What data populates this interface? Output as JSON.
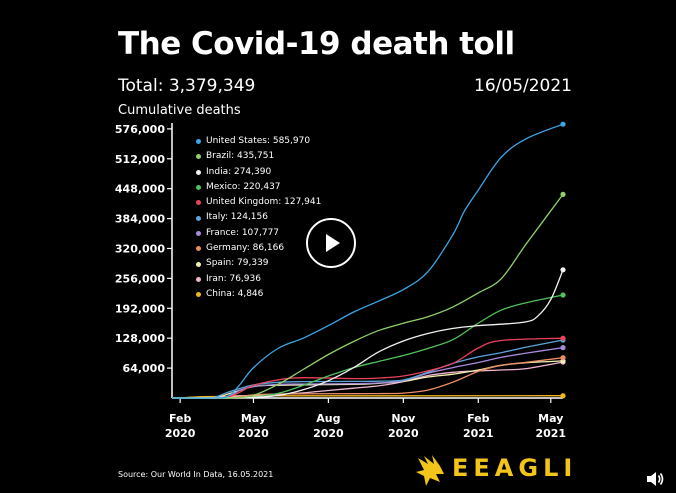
{
  "header": {
    "title": "The Covid-19 death toll",
    "total": "Total: 3,379,349",
    "date": "16/05/2021",
    "subtitle": "Cumulative deaths"
  },
  "footer": {
    "source": "Source: Our World In Data, 16.05.2021",
    "brand": "EEAGLI"
  },
  "controls": {
    "play_icon": "play-icon",
    "volume_icon": "volume-icon"
  },
  "chart_data": {
    "type": "line",
    "title": "",
    "ylabel": "Cumulative deaths",
    "xlabel": "",
    "ylim": [
      0,
      580000
    ],
    "xlim": [
      "2020-01-22",
      "2021-05-16"
    ],
    "yticks": [
      64000,
      128000,
      192000,
      256000,
      320000,
      384000,
      448000,
      512000,
      576000
    ],
    "ytick_labels": [
      "64,000",
      "128,000",
      "192,000",
      "256,000",
      "320,000",
      "384,000",
      "448,000",
      "512,000",
      "576,000"
    ],
    "xticks": [
      {
        "date": "2020-02-01",
        "label1": "Feb",
        "label2": "2020"
      },
      {
        "date": "2020-05-01",
        "label1": "May",
        "label2": "2020"
      },
      {
        "date": "2020-08-01",
        "label1": "Aug",
        "label2": "2020"
      },
      {
        "date": "2020-11-01",
        "label1": "Nov",
        "label2": "2020"
      },
      {
        "date": "2021-02-01",
        "label1": "Feb",
        "label2": "2021"
      },
      {
        "date": "2021-05-01",
        "label1": "May",
        "label2": "2021"
      }
    ],
    "legend_position": "top-left",
    "series": [
      {
        "name": "United States",
        "label": "United States: 585,970",
        "color": "#3ba7e6",
        "x": [
          "2020-01-22",
          "2020-03-15",
          "2020-04-01",
          "2020-04-15",
          "2020-05-01",
          "2020-06-01",
          "2020-07-01",
          "2020-08-01",
          "2020-09-01",
          "2020-10-01",
          "2020-11-01",
          "2020-12-01",
          "2021-01-01",
          "2021-01-15",
          "2021-02-01",
          "2021-03-01",
          "2021-04-01",
          "2021-05-16"
        ],
        "values": [
          0,
          100,
          5000,
          30000,
          65000,
          107000,
          128000,
          155000,
          184000,
          207000,
          232000,
          270000,
          350000,
          400000,
          445000,
          515000,
          555000,
          585970
        ]
      },
      {
        "name": "Brazil",
        "label": "Brazil: 435,751",
        "color": "#8ed06a",
        "x": [
          "2020-01-22",
          "2020-04-01",
          "2020-05-01",
          "2020-06-01",
          "2020-07-01",
          "2020-08-01",
          "2020-09-01",
          "2020-10-01",
          "2020-11-01",
          "2020-12-01",
          "2021-01-01",
          "2021-02-01",
          "2021-03-01",
          "2021-04-01",
          "2021-05-16"
        ],
        "values": [
          0,
          100,
          6000,
          30000,
          61000,
          93000,
          121000,
          144000,
          160000,
          174000,
          195000,
          225000,
          255000,
          330000,
          435751
        ]
      },
      {
        "name": "India",
        "label": "India: 274,390",
        "color": "#f2f2f2",
        "x": [
          "2020-01-22",
          "2020-04-15",
          "2020-05-01",
          "2020-06-01",
          "2020-07-01",
          "2020-08-01",
          "2020-09-01",
          "2020-10-01",
          "2020-11-01",
          "2020-12-01",
          "2021-01-01",
          "2021-02-01",
          "2021-03-01",
          "2021-04-01",
          "2021-04-15",
          "2021-05-01",
          "2021-05-16"
        ],
        "values": [
          0,
          400,
          1200,
          5500,
          17500,
          37000,
          65000,
          98000,
          122000,
          138000,
          149000,
          155000,
          158000,
          163000,
          175000,
          211000,
          274390
        ]
      },
      {
        "name": "Mexico",
        "label": "Mexico: 220,437",
        "color": "#4fc25c",
        "x": [
          "2020-01-22",
          "2020-04-15",
          "2020-05-01",
          "2020-06-01",
          "2020-07-01",
          "2020-08-01",
          "2020-09-01",
          "2020-10-01",
          "2020-11-01",
          "2020-12-01",
          "2021-01-01",
          "2021-02-01",
          "2021-03-01",
          "2021-04-01",
          "2021-05-16"
        ],
        "values": [
          0,
          500,
          2000,
          10000,
          27000,
          47000,
          65000,
          78000,
          91000,
          106000,
          125000,
          160000,
          188000,
          204000,
          220437
        ]
      },
      {
        "name": "United Kingdom",
        "label": "United Kingdom: 127,941",
        "color": "#e8435b",
        "x": [
          "2020-01-22",
          "2020-03-15",
          "2020-04-01",
          "2020-04-15",
          "2020-05-01",
          "2020-06-01",
          "2020-07-01",
          "2020-09-01",
          "2020-10-01",
          "2020-11-01",
          "2020-12-01",
          "2021-01-01",
          "2021-02-01",
          "2021-03-01",
          "2021-05-16"
        ],
        "values": [
          0,
          50,
          2500,
          13000,
          27000,
          39000,
          43500,
          41500,
          42500,
          47000,
          58000,
          74000,
          107000,
          123000,
          127941
        ]
      },
      {
        "name": "Italy",
        "label": "Italy: 124,156",
        "color": "#5aa5d9",
        "x": [
          "2020-01-22",
          "2020-03-01",
          "2020-03-15",
          "2020-04-01",
          "2020-05-01",
          "2020-06-01",
          "2020-07-01",
          "2020-09-01",
          "2020-10-01",
          "2020-11-01",
          "2020-12-01",
          "2021-01-01",
          "2021-02-01",
          "2021-03-01",
          "2021-04-01",
          "2021-05-16"
        ],
        "values": [
          0,
          30,
          1800,
          13000,
          28000,
          33500,
          35000,
          35500,
          36000,
          38500,
          55000,
          74000,
          88000,
          97000,
          109000,
          124156
        ]
      },
      {
        "name": "France",
        "label": "France: 107,777",
        "color": "#a78bdc",
        "x": [
          "2020-01-22",
          "2020-03-15",
          "2020-04-01",
          "2020-04-15",
          "2020-05-01",
          "2020-06-01",
          "2020-07-01",
          "2020-09-01",
          "2020-10-01",
          "2020-11-01",
          "2020-12-01",
          "2021-01-01",
          "2021-02-01",
          "2021-03-01",
          "2021-04-01",
          "2021-05-16"
        ],
        "values": [
          0,
          100,
          4000,
          17000,
          24500,
          29000,
          30000,
          30700,
          32000,
          37000,
          53000,
          65000,
          76000,
          87000,
          96000,
          107777
        ]
      },
      {
        "name": "Germany",
        "label": "Germany: 86,166",
        "color": "#e98d63",
        "x": [
          "2020-01-22",
          "2020-04-01",
          "2020-05-01",
          "2020-06-01",
          "2020-09-01",
          "2020-10-01",
          "2020-11-01",
          "2020-12-01",
          "2021-01-01",
          "2021-02-01",
          "2021-03-01",
          "2021-04-01",
          "2021-05-16"
        ],
        "values": [
          0,
          900,
          6700,
          8500,
          9300,
          9500,
          10500,
          17000,
          34000,
          57000,
          70000,
          76500,
          86166
        ]
      },
      {
        "name": "Spain",
        "label": "Spain: 79,339",
        "color": "#f4f0b0",
        "x": [
          "2020-01-22",
          "2020-03-01",
          "2020-03-15",
          "2020-04-01",
          "2020-05-01",
          "2020-06-01",
          "2020-09-01",
          "2020-10-01",
          "2020-11-01",
          "2020-12-01",
          "2021-01-01",
          "2021-02-01",
          "2021-03-01",
          "2021-04-01",
          "2021-05-16"
        ],
        "values": [
          0,
          0,
          300,
          9000,
          24500,
          27500,
          29200,
          31500,
          35500,
          45000,
          51000,
          60000,
          70000,
          75500,
          79339
        ]
      },
      {
        "name": "Iran",
        "label": "Iran: 76,936",
        "color": "#efb6d0",
        "x": [
          "2020-01-22",
          "2020-02-20",
          "2020-03-15",
          "2020-04-01",
          "2020-05-01",
          "2020-06-01",
          "2020-07-01",
          "2020-08-01",
          "2020-09-01",
          "2020-10-01",
          "2020-11-01",
          "2020-12-01",
          "2021-01-01",
          "2021-02-01",
          "2021-03-01",
          "2021-04-01",
          "2021-05-16"
        ],
        "values": [
          0,
          2,
          700,
          3000,
          6000,
          7900,
          11000,
          16000,
          21000,
          26000,
          35000,
          48000,
          55000,
          58000,
          60000,
          63000,
          76936
        ]
      },
      {
        "name": "China",
        "label": "China: 4,846",
        "color": "#f0b41c",
        "x": [
          "2020-01-22",
          "2020-02-01",
          "2020-02-15",
          "2020-03-01",
          "2020-04-01",
          "2020-04-20",
          "2020-05-01",
          "2021-05-16"
        ],
        "values": [
          17,
          259,
          1660,
          2900,
          3300,
          4636,
          4637,
          4846
        ]
      }
    ]
  }
}
